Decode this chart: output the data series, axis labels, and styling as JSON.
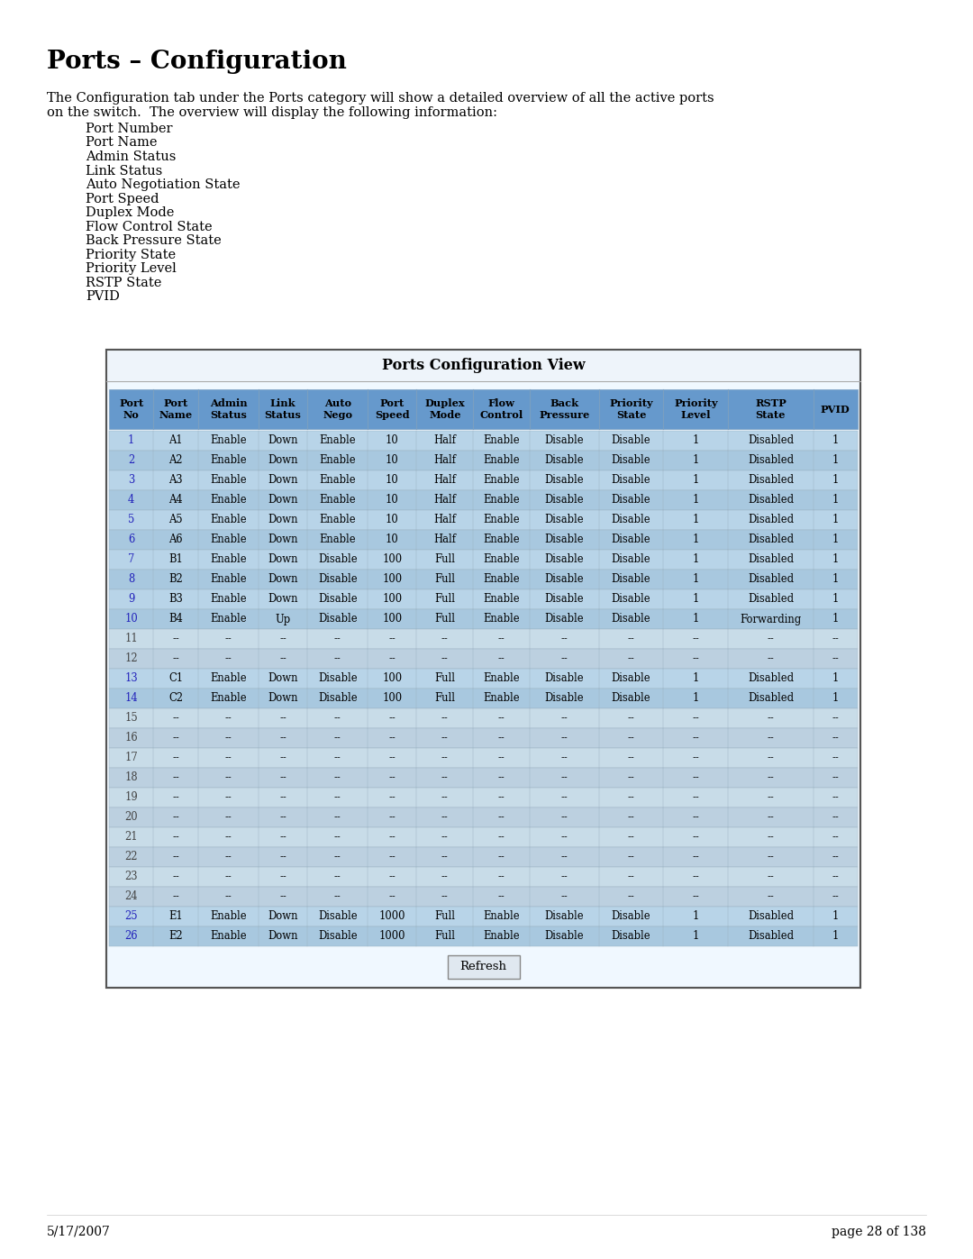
{
  "title": "Ports – Configuration",
  "page_info": "page 28 of 138",
  "date": "5/17/2007",
  "desc1": "        The Configuration tab under the Ports category will show a detailed overview of all the active ports",
  "desc2": "on the switch.  The overview will display the following information:",
  "bullet_items": [
    "Port Number",
    "Port Name",
    "Admin Status",
    "Link Status",
    "Auto Negotiation State",
    "Port Speed",
    "Duplex Mode",
    "Flow Control State",
    "Back Pressure State",
    "Priority State",
    "Priority Level",
    "RSTP State",
    "PVID"
  ],
  "table_title": "Ports Configuration View",
  "headers": [
    "Port\nNo",
    "Port\nName",
    "Admin\nStatus",
    "Link\nStatus",
    "Auto\nNego",
    "Port\nSpeed",
    "Duplex\nMode",
    "Flow\nControl",
    "Back\nPressure",
    "Priority\nState",
    "Priority\nLevel",
    "RSTP\nState",
    "PVID"
  ],
  "col_weights": [
    1.1,
    1.1,
    1.5,
    1.2,
    1.5,
    1.2,
    1.4,
    1.4,
    1.7,
    1.6,
    1.6,
    2.1,
    1.1
  ],
  "rows": [
    [
      "1",
      "A1",
      "Enable",
      "Down",
      "Enable",
      "10",
      "Half",
      "Enable",
      "Disable",
      "Disable",
      "1",
      "Disabled",
      "1"
    ],
    [
      "2",
      "A2",
      "Enable",
      "Down",
      "Enable",
      "10",
      "Half",
      "Enable",
      "Disable",
      "Disable",
      "1",
      "Disabled",
      "1"
    ],
    [
      "3",
      "A3",
      "Enable",
      "Down",
      "Enable",
      "10",
      "Half",
      "Enable",
      "Disable",
      "Disable",
      "1",
      "Disabled",
      "1"
    ],
    [
      "4",
      "A4",
      "Enable",
      "Down",
      "Enable",
      "10",
      "Half",
      "Enable",
      "Disable",
      "Disable",
      "1",
      "Disabled",
      "1"
    ],
    [
      "5",
      "A5",
      "Enable",
      "Down",
      "Enable",
      "10",
      "Half",
      "Enable",
      "Disable",
      "Disable",
      "1",
      "Disabled",
      "1"
    ],
    [
      "6",
      "A6",
      "Enable",
      "Down",
      "Enable",
      "10",
      "Half",
      "Enable",
      "Disable",
      "Disable",
      "1",
      "Disabled",
      "1"
    ],
    [
      "7",
      "B1",
      "Enable",
      "Down",
      "Disable",
      "100",
      "Full",
      "Enable",
      "Disable",
      "Disable",
      "1",
      "Disabled",
      "1"
    ],
    [
      "8",
      "B2",
      "Enable",
      "Down",
      "Disable",
      "100",
      "Full",
      "Enable",
      "Disable",
      "Disable",
      "1",
      "Disabled",
      "1"
    ],
    [
      "9",
      "B3",
      "Enable",
      "Down",
      "Disable",
      "100",
      "Full",
      "Enable",
      "Disable",
      "Disable",
      "1",
      "Disabled",
      "1"
    ],
    [
      "10",
      "B4",
      "Enable",
      "Up",
      "Disable",
      "100",
      "Full",
      "Enable",
      "Disable",
      "Disable",
      "1",
      "Forwarding",
      "1"
    ],
    [
      "11",
      "--",
      "--",
      "--",
      "--",
      "--",
      "--",
      "--",
      "--",
      "--",
      "--",
      "--",
      "--"
    ],
    [
      "12",
      "--",
      "--",
      "--",
      "--",
      "--",
      "--",
      "--",
      "--",
      "--",
      "--",
      "--",
      "--"
    ],
    [
      "13",
      "C1",
      "Enable",
      "Down",
      "Disable",
      "100",
      "Full",
      "Enable",
      "Disable",
      "Disable",
      "1",
      "Disabled",
      "1"
    ],
    [
      "14",
      "C2",
      "Enable",
      "Down",
      "Disable",
      "100",
      "Full",
      "Enable",
      "Disable",
      "Disable",
      "1",
      "Disabled",
      "1"
    ],
    [
      "15",
      "--",
      "--",
      "--",
      "--",
      "--",
      "--",
      "--",
      "--",
      "--",
      "--",
      "--",
      "--"
    ],
    [
      "16",
      "--",
      "--",
      "--",
      "--",
      "--",
      "--",
      "--",
      "--",
      "--",
      "--",
      "--",
      "--"
    ],
    [
      "17",
      "--",
      "--",
      "--",
      "--",
      "--",
      "--",
      "--",
      "--",
      "--",
      "--",
      "--",
      "--"
    ],
    [
      "18",
      "--",
      "--",
      "--",
      "--",
      "--",
      "--",
      "--",
      "--",
      "--",
      "--",
      "--",
      "--"
    ],
    [
      "19",
      "--",
      "--",
      "--",
      "--",
      "--",
      "--",
      "--",
      "--",
      "--",
      "--",
      "--",
      "--"
    ],
    [
      "20",
      "--",
      "--",
      "--",
      "--",
      "--",
      "--",
      "--",
      "--",
      "--",
      "--",
      "--",
      "--"
    ],
    [
      "21",
      "--",
      "--",
      "--",
      "--",
      "--",
      "--",
      "--",
      "--",
      "--",
      "--",
      "--",
      "--"
    ],
    [
      "22",
      "--",
      "--",
      "--",
      "--",
      "--",
      "--",
      "--",
      "--",
      "--",
      "--",
      "--",
      "--"
    ],
    [
      "23",
      "--",
      "--",
      "--",
      "--",
      "--",
      "--",
      "--",
      "--",
      "--",
      "--",
      "--",
      "--"
    ],
    [
      "24",
      "--",
      "--",
      "--",
      "--",
      "--",
      "--",
      "--",
      "--",
      "--",
      "--",
      "--",
      "--"
    ],
    [
      "25",
      "E1",
      "Enable",
      "Down",
      "Disable",
      "1000",
      "Full",
      "Enable",
      "Disable",
      "Disable",
      "1",
      "Disabled",
      "1"
    ],
    [
      "26",
      "E2",
      "Enable",
      "Down",
      "Disable",
      "1000",
      "Full",
      "Enable",
      "Disable",
      "Disable",
      "1",
      "Disabled",
      "1"
    ]
  ],
  "link_rows": [
    0,
    1,
    2,
    3,
    4,
    5,
    6,
    7,
    8,
    9,
    12,
    13,
    24,
    25
  ],
  "bg_color": "#ffffff",
  "table_outer_bg": "#f0f8ff",
  "header_color": "#6699cc",
  "active_even": "#b8d4e8",
  "active_odd": "#a8c8df",
  "inactive_even": "#c8dce8",
  "inactive_odd": "#bcd0e0",
  "link_color": "#2222bb",
  "text_color": "#000000",
  "cell_border": "#9ab0c0",
  "header_border": "#7a9fc0"
}
